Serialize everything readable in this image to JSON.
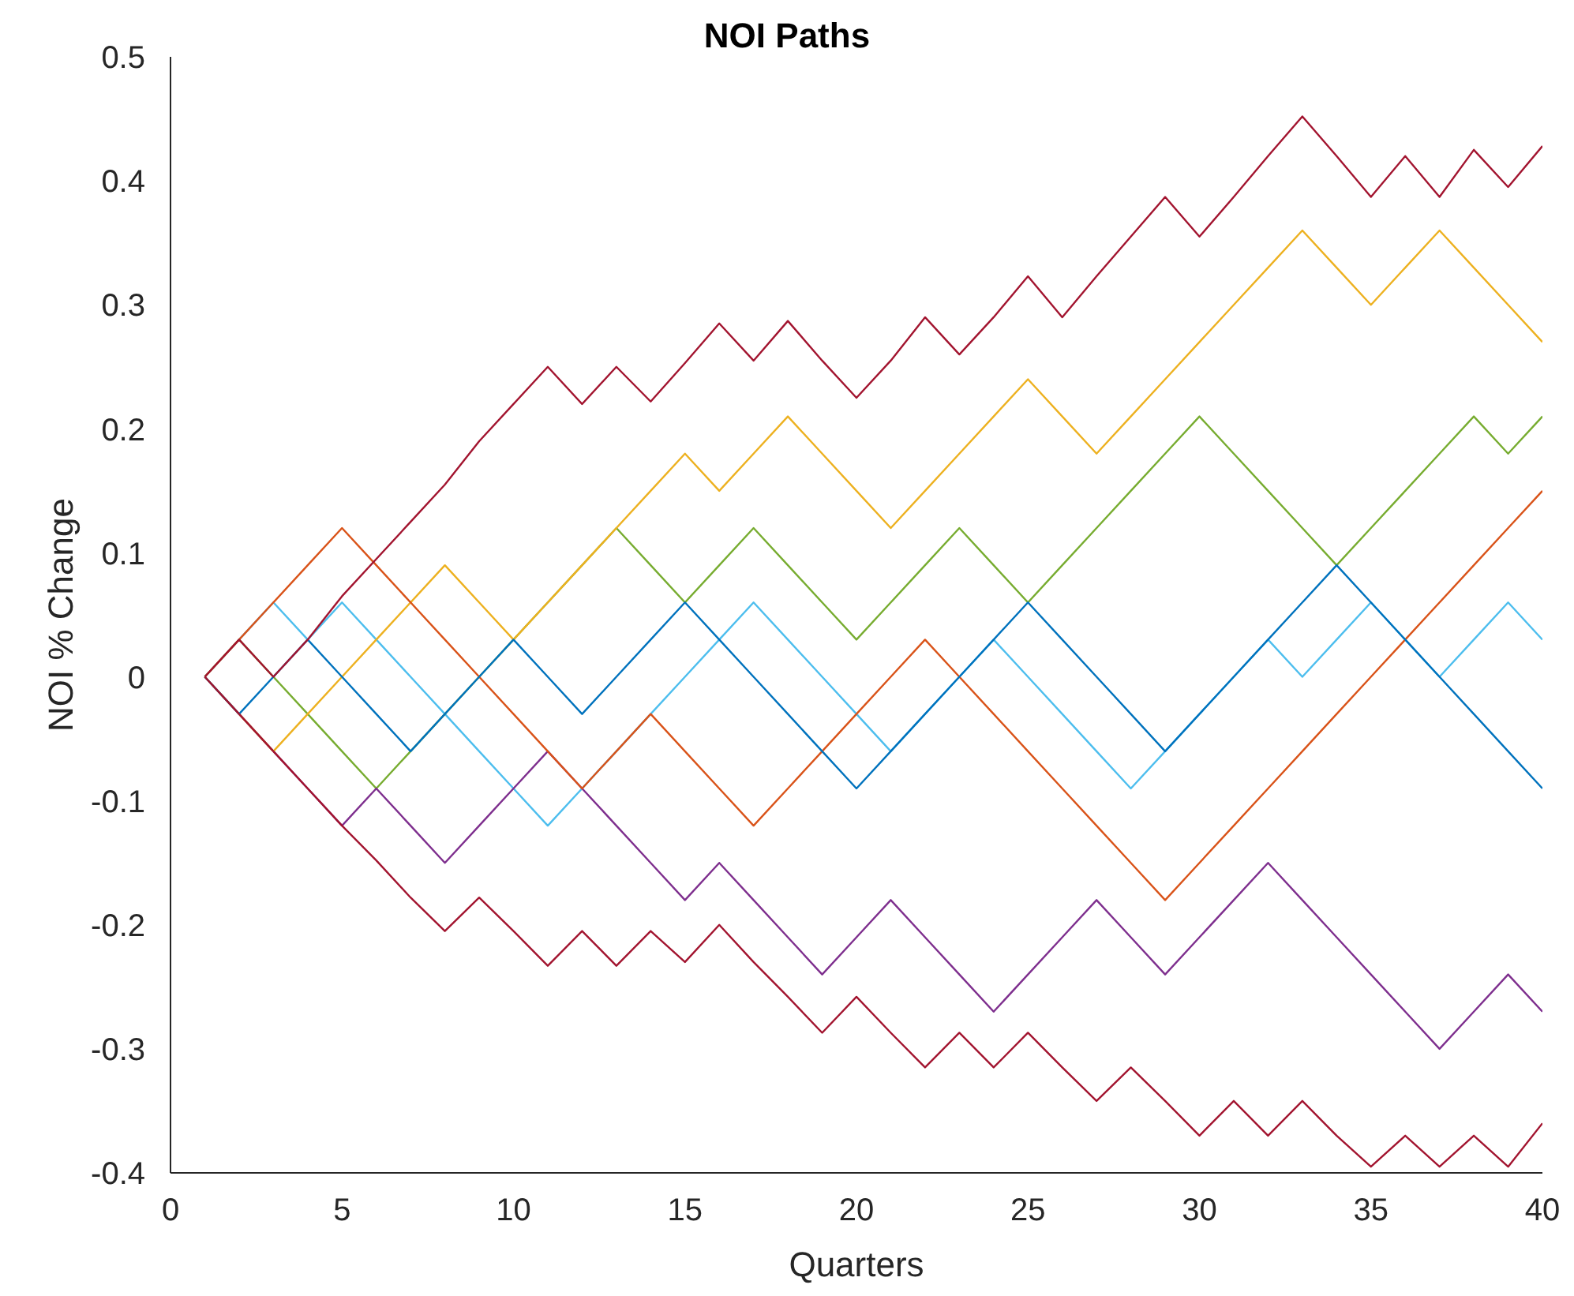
{
  "chart_data": {
    "type": "line",
    "title": "NOI Paths",
    "xlabel": "Quarters",
    "ylabel": "NOI % Change",
    "x": [
      1,
      2,
      3,
      4,
      5,
      6,
      7,
      8,
      9,
      10,
      11,
      12,
      13,
      14,
      15,
      16,
      17,
      18,
      19,
      20,
      21,
      22,
      23,
      24,
      25,
      26,
      27,
      28,
      29,
      30,
      31,
      32,
      33,
      34,
      35,
      36,
      37,
      38,
      39,
      40
    ],
    "xlim": [
      0,
      40
    ],
    "xticks": [
      0,
      5,
      10,
      15,
      20,
      25,
      30,
      35,
      40
    ],
    "ylim": [
      -0.4,
      0.5
    ],
    "yticks": [
      -0.4,
      -0.3,
      -0.2,
      -0.1,
      0,
      0.1,
      0.2,
      0.3,
      0.4,
      0.5
    ],
    "grid": false,
    "marker": "none",
    "line_style": "solid",
    "series": [
      {
        "color": "#a2142f",
        "values": [
          0,
          0.03,
          0,
          0.03,
          0.065,
          0.095,
          0.125,
          0.155,
          0.19,
          0.22,
          0.25,
          0.22,
          0.25,
          0.222,
          0.253,
          0.285,
          0.255,
          0.287,
          0.255,
          0.225,
          0.255,
          0.29,
          0.26,
          0.29,
          0.323,
          0.29,
          0.323,
          0.355,
          0.387,
          0.355,
          0.387,
          0.42,
          0.452,
          0.42,
          0.387,
          0.42,
          0.387,
          0.425,
          0.395,
          0.428
        ]
      },
      {
        "color": "#a2142f",
        "values": [
          0,
          -0.03,
          -0.06,
          -0.09,
          -0.12,
          -0.148,
          -0.178,
          -0.205,
          -0.178,
          -0.205,
          -0.233,
          -0.205,
          -0.233,
          -0.205,
          -0.23,
          -0.2,
          -0.23,
          -0.258,
          -0.287,
          -0.258,
          -0.287,
          -0.315,
          -0.287,
          -0.315,
          -0.287,
          -0.315,
          -0.342,
          -0.315,
          -0.342,
          -0.37,
          -0.342,
          -0.37,
          -0.342,
          -0.37,
          -0.395,
          -0.37,
          -0.395,
          -0.37,
          -0.395,
          -0.36
        ]
      },
      {
        "color": "#0072bd",
        "values": [
          0,
          -0.03,
          0,
          0.03,
          0,
          -0.03,
          -0.06,
          -0.03,
          0,
          0.03,
          0,
          -0.03,
          0,
          0.03,
          0.06,
          0.03,
          0,
          -0.03,
          -0.06,
          -0.09,
          -0.06,
          -0.03,
          0,
          0.03,
          0.06,
          0.03,
          0,
          -0.03,
          -0.06,
          -0.03,
          0,
          0.03,
          0.06,
          0.09,
          0.06,
          0.03,
          0,
          -0.03,
          -0.06,
          -0.09
        ]
      },
      {
        "color": "#d95319",
        "values": [
          0,
          0.03,
          0.06,
          0.09,
          0.12,
          0.09,
          0.06,
          0.03,
          0,
          -0.03,
          -0.06,
          -0.09,
          -0.06,
          -0.03,
          -0.06,
          -0.09,
          -0.12,
          -0.09,
          -0.06,
          -0.03,
          0,
          0.03,
          0,
          -0.03,
          -0.06,
          -0.09,
          -0.12,
          -0.15,
          -0.18,
          -0.15,
          -0.12,
          -0.09,
          -0.06,
          -0.03,
          0,
          0.03,
          0.06,
          0.09,
          0.12,
          0.15
        ]
      },
      {
        "color": "#edb120",
        "values": [
          0,
          -0.03,
          -0.06,
          -0.03,
          0,
          0.03,
          0.06,
          0.09,
          0.06,
          0.03,
          0.06,
          0.09,
          0.12,
          0.15,
          0.18,
          0.15,
          0.18,
          0.21,
          0.18,
          0.15,
          0.12,
          0.15,
          0.18,
          0.21,
          0.24,
          0.21,
          0.18,
          0.21,
          0.24,
          0.27,
          0.3,
          0.33,
          0.36,
          0.33,
          0.3,
          0.33,
          0.36,
          0.33,
          0.3,
          0.27
        ]
      },
      {
        "color": "#7e2f8e",
        "values": [
          0,
          -0.03,
          -0.06,
          -0.09,
          -0.12,
          -0.09,
          -0.12,
          -0.15,
          -0.12,
          -0.09,
          -0.06,
          -0.09,
          -0.12,
          -0.15,
          -0.18,
          -0.15,
          -0.18,
          -0.21,
          -0.24,
          -0.21,
          -0.18,
          -0.21,
          -0.24,
          -0.27,
          -0.24,
          -0.21,
          -0.18,
          -0.21,
          -0.24,
          -0.21,
          -0.18,
          -0.15,
          -0.18,
          -0.21,
          -0.24,
          -0.27,
          -0.3,
          -0.27,
          -0.24,
          -0.27
        ]
      },
      {
        "color": "#77ac30",
        "values": [
          0,
          0.03,
          0,
          -0.03,
          -0.06,
          -0.09,
          -0.06,
          -0.03,
          0,
          0.03,
          0.06,
          0.09,
          0.12,
          0.09,
          0.06,
          0.09,
          0.12,
          0.09,
          0.06,
          0.03,
          0.06,
          0.09,
          0.12,
          0.09,
          0.06,
          0.09,
          0.12,
          0.15,
          0.18,
          0.21,
          0.18,
          0.15,
          0.12,
          0.09,
          0.12,
          0.15,
          0.18,
          0.21,
          0.18,
          0.21
        ]
      },
      {
        "color": "#4dbeee",
        "values": [
          0,
          0.03,
          0.06,
          0.03,
          0.06,
          0.03,
          0,
          -0.03,
          -0.06,
          -0.09,
          -0.12,
          -0.09,
          -0.06,
          -0.03,
          0,
          0.03,
          0.06,
          0.03,
          0,
          -0.03,
          -0.06,
          -0.03,
          0,
          0.03,
          0,
          -0.03,
          -0.06,
          -0.09,
          -0.06,
          -0.03,
          0,
          0.03,
          0,
          0.03,
          0.06,
          0.03,
          0,
          0.03,
          0.06,
          0.03
        ]
      }
    ]
  }
}
